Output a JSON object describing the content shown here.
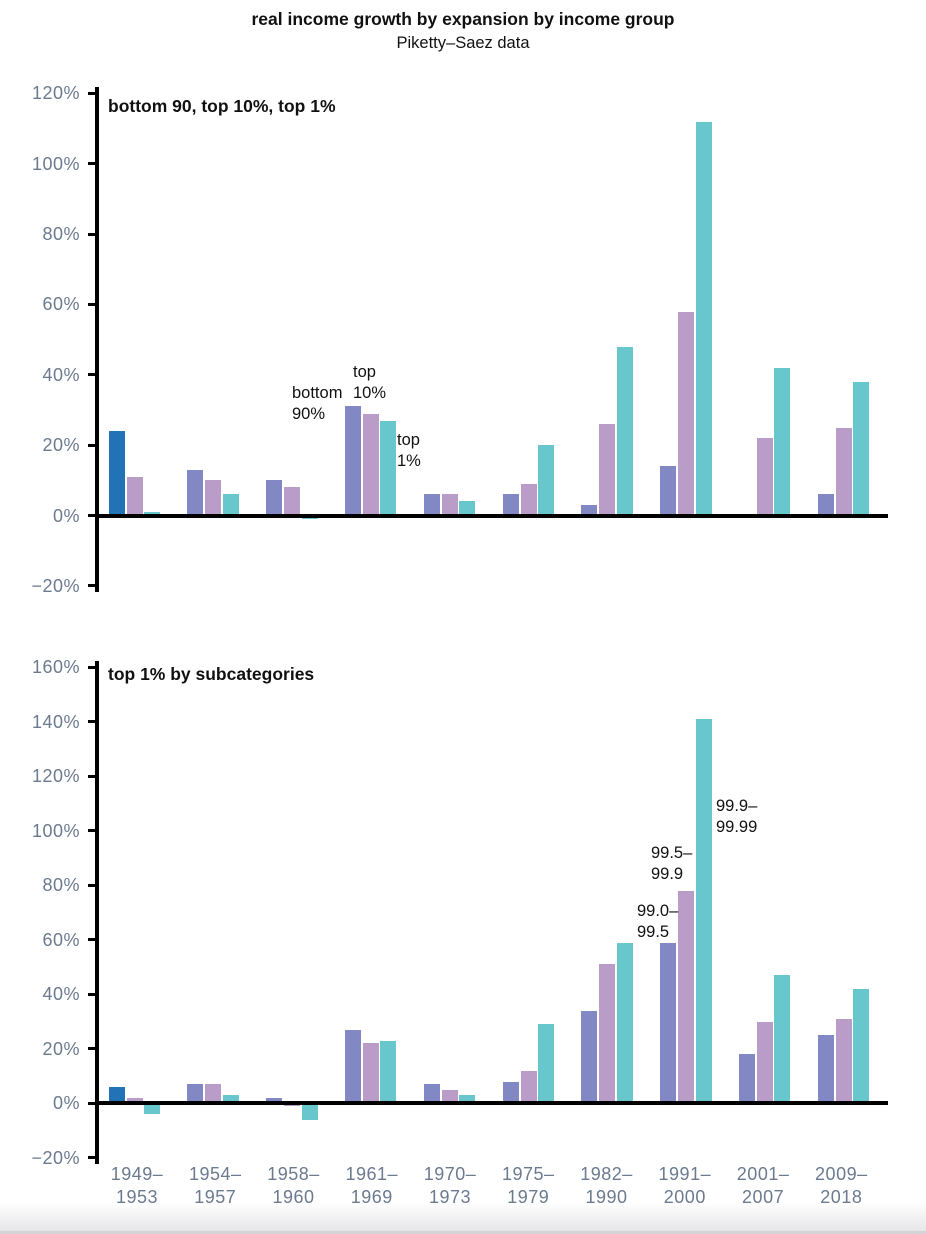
{
  "page": {
    "title": "real income growth by expansion by income group",
    "subtitle": "Piketty–Saez data"
  },
  "colors": {
    "bar_blue_first_group": "#2173b6",
    "bar_slate": "#8188c3",
    "bar_lavender": "#ba9cc8",
    "bar_teal": "#68c7cd",
    "axis_label": "#6b7a8f",
    "axis_line": "#000000"
  },
  "categories": [
    {
      "line1": "1949–",
      "line2": "1953"
    },
    {
      "line1": "1954–",
      "line2": "1957"
    },
    {
      "line1": "1958–",
      "line2": "1960"
    },
    {
      "line1": "1961–",
      "line2": "1969"
    },
    {
      "line1": "1970–",
      "line2": "1973"
    },
    {
      "line1": "1975–",
      "line2": "1979"
    },
    {
      "line1": "1982–",
      "line2": "1990"
    },
    {
      "line1": "1991–",
      "line2": "2000"
    },
    {
      "line1": "2001–",
      "line2": "2007"
    },
    {
      "line1": "2009–",
      "line2": "2018"
    }
  ],
  "chart_data": [
    {
      "type": "bar",
      "panel_title": "bottom 90, top 10%, top 1%",
      "ylim": [
        -20,
        120
      ],
      "ytick_step": 20,
      "ytick_labels": [
        "120%",
        "100%",
        "80%",
        "60%",
        "40%",
        "20%",
        "0%",
        "−20%"
      ],
      "grid": false,
      "legend": "in-plot annotations",
      "series": [
        {
          "name": "bottom 90",
          "values": [
            24,
            13,
            10,
            31,
            6,
            6,
            3,
            14,
            null,
            6
          ]
        },
        {
          "name": "top 10%",
          "values": [
            11,
            10,
            8,
            29,
            6,
            9,
            26,
            58,
            22,
            25
          ]
        },
        {
          "name": "top 1%",
          "values": [
            1,
            6,
            -1,
            27,
            4,
            20,
            48,
            112,
            42,
            38
          ]
        }
      ],
      "annotations": [
        {
          "lines": [
            "bottom",
            "90%"
          ]
        },
        {
          "lines": [
            "top",
            "10%"
          ]
        },
        {
          "lines": [
            "top",
            "1%"
          ]
        }
      ]
    },
    {
      "type": "bar",
      "panel_title": "top 1% by subcategories",
      "ylim": [
        -20,
        160
      ],
      "ytick_step": 20,
      "ytick_labels": [
        "160%",
        "140%",
        "120%",
        "100%",
        "80%",
        "60%",
        "40%",
        "20%",
        "0%",
        "−20%"
      ],
      "grid": false,
      "legend": "in-plot annotations",
      "series": [
        {
          "name": "99.0–99.5",
          "values": [
            6,
            7,
            2,
            27,
            7,
            8,
            34,
            59,
            18,
            25
          ]
        },
        {
          "name": "99.5–99.9",
          "values": [
            2,
            7,
            -1,
            22,
            5,
            12,
            51,
            78,
            30,
            31
          ]
        },
        {
          "name": "99.9–99.99",
          "values": [
            -4,
            3,
            -6,
            23,
            3,
            29,
            59,
            141,
            47,
            42
          ]
        }
      ],
      "annotations": [
        {
          "lines": [
            "99.0–",
            "99.5"
          ]
        },
        {
          "lines": [
            "99.5–",
            "99.9"
          ]
        },
        {
          "lines": [
            "99.9–",
            "99.99"
          ]
        }
      ]
    }
  ]
}
